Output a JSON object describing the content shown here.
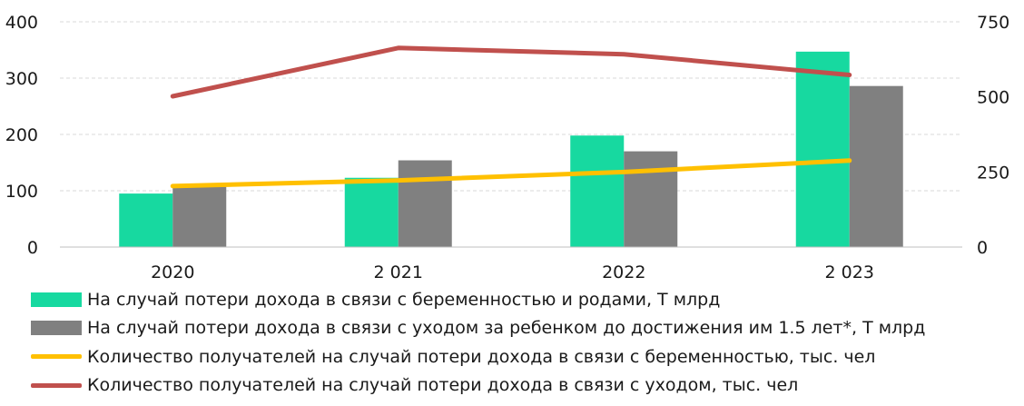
{
  "chart_data": {
    "type": "bar",
    "categories": [
      "2020",
      "2 021",
      "2022",
      "2 023"
    ],
    "y_left": {
      "ylim": [
        0,
        400
      ],
      "ticks": [
        "0",
        "100",
        "200",
        "300",
        "400"
      ]
    },
    "y_right": {
      "ylim": [
        0,
        750
      ],
      "ticks": [
        "0",
        "250",
        "500",
        "750"
      ]
    },
    "grid": true,
    "legend_position": "bottom",
    "series": [
      {
        "name": "На случай потери дохода в связи с беременностью и родами, Т млрд",
        "kind": "bar",
        "axis": "left",
        "color": "#17d9a0",
        "values": [
          95,
          123,
          198,
          347
        ]
      },
      {
        "name": "На случай потери дохода в связи с уходом за ребенком до достижения им 1.5 лет*, Т млрд",
        "kind": "bar",
        "axis": "left",
        "color": "#808080",
        "values": [
          107,
          154,
          170,
          286
        ]
      },
      {
        "name": "Количество получателей на случай потери дохода в связи с беременностью, тыс. чел",
        "kind": "line",
        "axis": "right",
        "color": "#ffc000",
        "values": [
          203,
          222,
          250,
          288
        ]
      },
      {
        "name": "Количество получателей на случай потери дохода в связи с уходом, тыс. чел",
        "kind": "line",
        "axis": "right",
        "color": "#c0504d",
        "values": [
          502,
          663,
          642,
          573
        ]
      }
    ]
  }
}
